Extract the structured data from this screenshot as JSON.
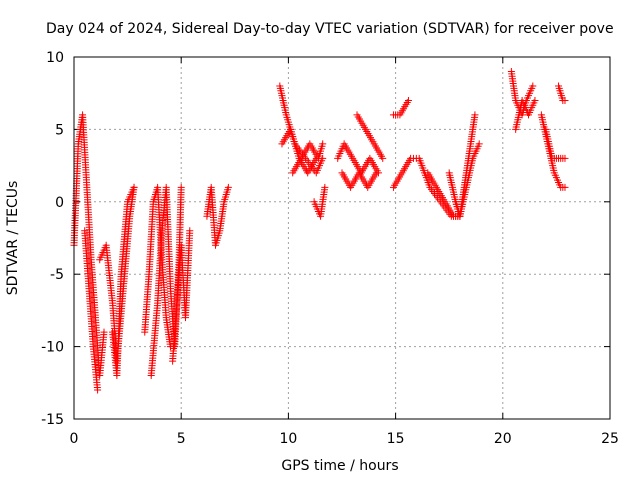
{
  "chart_data": {
    "type": "scatter",
    "title": "Day 024 of 2024, Sidereal Day-to-day VTEC variation (SDTVAR) for receiver pove",
    "xlabel": "GPS time / hours",
    "ylabel": "SDTVAR / TECUs",
    "xlim": [
      0,
      25
    ],
    "ylim": [
      -15,
      10
    ],
    "xticks": [
      0,
      5,
      10,
      15,
      20,
      25
    ],
    "yticks": [
      -15,
      -10,
      -5,
      0,
      5,
      10
    ],
    "grid": true,
    "marker": "+",
    "color": "#ff0000",
    "segments": [
      {
        "x": [
          0.0,
          0.2,
          0.4,
          0.6,
          0.8,
          1.0,
          1.2,
          1.4
        ],
        "y": [
          -3,
          4,
          6,
          1,
          -4,
          -8,
          -12,
          -9
        ]
      },
      {
        "x": [
          0.5,
          0.7,
          0.9,
          1.1
        ],
        "y": [
          -2,
          -6,
          -10,
          -13
        ]
      },
      {
        "x": [
          1.2,
          1.5,
          1.8,
          2.0,
          2.3,
          2.6,
          2.8
        ],
        "y": [
          -4,
          -3,
          -7,
          -11,
          -6,
          -1,
          1
        ]
      },
      {
        "x": [
          1.8,
          2.0,
          2.2,
          2.5,
          2.8
        ],
        "y": [
          -9,
          -12,
          -5,
          0,
          1
        ]
      },
      {
        "x": [
          3.3,
          3.5,
          3.7,
          3.9,
          4.1,
          4.3,
          4.5
        ],
        "y": [
          -9,
          -5,
          0,
          1,
          -4,
          -8,
          -10
        ]
      },
      {
        "x": [
          3.6,
          3.9,
          4.1,
          4.3,
          4.5,
          4.7,
          4.9,
          5.0
        ],
        "y": [
          -12,
          -7,
          -2,
          1,
          -6,
          -10,
          -4,
          1
        ]
      },
      {
        "x": [
          4.6,
          4.8,
          5.0,
          5.2,
          5.4
        ],
        "y": [
          -11,
          -7,
          -3,
          -8,
          -2
        ]
      },
      {
        "x": [
          6.2,
          6.4,
          6.6,
          6.8,
          7.0,
          7.2
        ],
        "y": [
          -1,
          1,
          -3,
          -2,
          0,
          1
        ]
      },
      {
        "x": [
          9.6,
          9.9,
          10.3,
          10.8,
          11.3,
          11.6
        ],
        "y": [
          8,
          6,
          4,
          3,
          2,
          3
        ]
      },
      {
        "x": [
          9.7,
          10.1,
          10.5,
          10.9,
          11.3
        ],
        "y": [
          4,
          5,
          3,
          2,
          3
        ]
      },
      {
        "x": [
          10.2,
          10.6,
          11.0,
          11.4,
          11.6
        ],
        "y": [
          2,
          3,
          4,
          3,
          4
        ]
      },
      {
        "x": [
          11.2,
          11.5,
          11.7
        ],
        "y": [
          0,
          -1,
          1
        ]
      },
      {
        "x": [
          12.3,
          12.6,
          13.0,
          13.4,
          13.8,
          14.2
        ],
        "y": [
          3,
          4,
          3,
          2,
          3,
          2
        ]
      },
      {
        "x": [
          12.5,
          12.9,
          13.3,
          13.7,
          14.1
        ],
        "y": [
          2,
          1,
          2,
          1,
          2
        ]
      },
      {
        "x": [
          13.2,
          13.6,
          14.0,
          14.4
        ],
        "y": [
          6,
          5,
          4,
          3
        ]
      },
      {
        "x": [
          14.9,
          15.2,
          15.6
        ],
        "y": [
          6,
          6,
          7
        ]
      },
      {
        "x": [
          14.9,
          15.3,
          15.7,
          16.1,
          16.6,
          17.1,
          17.6,
          17.9
        ],
        "y": [
          1,
          2,
          3,
          3,
          1,
          0,
          -1,
          -1
        ]
      },
      {
        "x": [
          16.5,
          16.9,
          17.3,
          17.7,
          18.0
        ],
        "y": [
          2,
          1,
          0,
          -1,
          -1
        ]
      },
      {
        "x": [
          17.5,
          17.8,
          18.0,
          18.2,
          18.5,
          18.7
        ],
        "y": [
          2,
          0,
          -1,
          1,
          4,
          6
        ]
      },
      {
        "x": [
          17.8,
          18.0,
          18.3,
          18.6,
          18.9
        ],
        "y": [
          0,
          -1,
          1,
          3,
          4
        ]
      },
      {
        "x": [
          20.4,
          20.6,
          20.9,
          21.1,
          21.4
        ],
        "y": [
          9,
          7,
          6,
          7,
          8
        ]
      },
      {
        "x": [
          20.6,
          20.9,
          21.2,
          21.5
        ],
        "y": [
          5,
          7,
          6,
          7
        ]
      },
      {
        "x": [
          21.8,
          22.1,
          22.4,
          22.7,
          22.9
        ],
        "y": [
          6,
          4,
          2,
          1,
          1
        ]
      },
      {
        "x": [
          22.0,
          22.3,
          22.6,
          22.9
        ],
        "y": [
          5,
          3,
          3,
          3
        ]
      },
      {
        "x": [
          22.6,
          22.8,
          22.9
        ],
        "y": [
          8,
          7,
          7
        ]
      }
    ]
  }
}
